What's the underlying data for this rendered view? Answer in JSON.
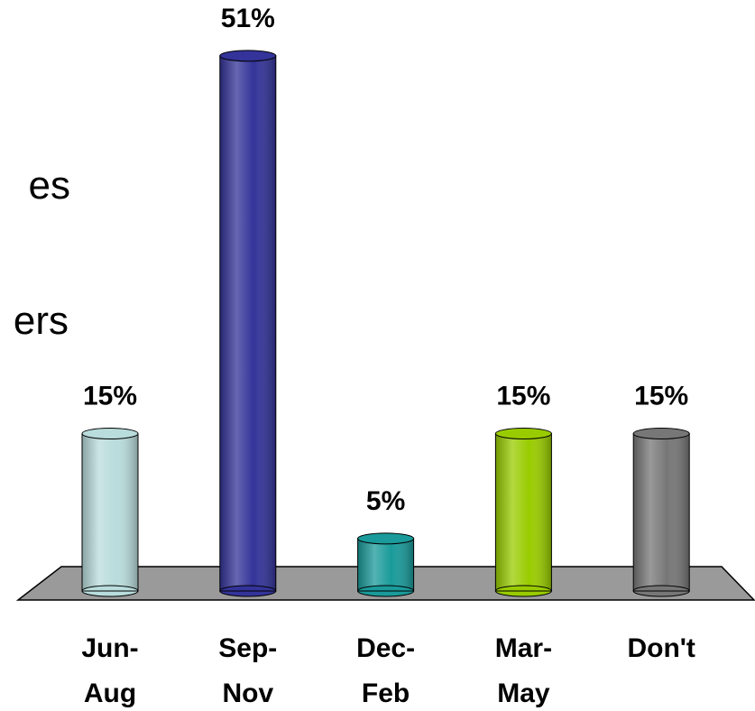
{
  "chart_data": {
    "type": "bar",
    "annotations": [
      "es",
      "ers"
    ],
    "categories": [
      "Jun-Aug",
      "Sep-Nov",
      "Dec-Feb",
      "Mar-May",
      "Don't"
    ],
    "values": [
      15,
      51,
      5,
      15,
      15
    ],
    "value_labels": [
      "15%",
      "51%",
      "5%",
      "15%",
      "15%"
    ],
    "colors": [
      "#b9dcdc",
      "#333399",
      "#1a9a9a",
      "#99cc00",
      "#777777"
    ]
  }
}
